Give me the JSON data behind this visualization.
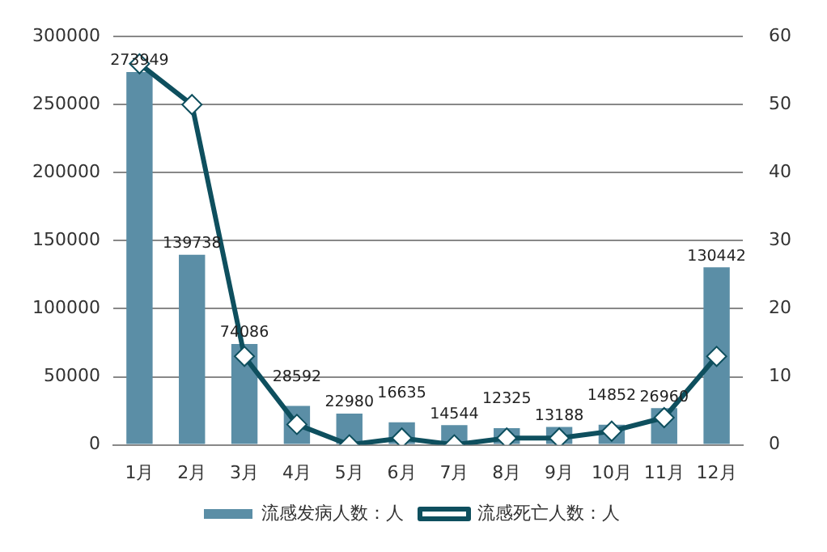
{
  "chart_data": {
    "type": "bar",
    "categories": [
      "1月",
      "2月",
      "3月",
      "4月",
      "5月",
      "6月",
      "7月",
      "8月",
      "9月",
      "10月",
      "11月",
      "12月"
    ],
    "series": [
      {
        "name": "流感发病人数：人",
        "color": "#5b8ea6",
        "values": [
          273949,
          139738,
          74086,
          28592,
          22980,
          16635,
          14544,
          12325,
          13188,
          14852,
          26960,
          130442
        ],
        "value_labels": [
          "273949",
          "139738",
          "74086",
          "28592",
          "22980",
          "16635",
          "14544",
          "12325",
          "13188",
          "14852",
          "26960",
          "130442"
        ]
      },
      {
        "name": "流感死亡人数：人",
        "type": "line",
        "axis": "y2",
        "color": "#0e4f5e",
        "values": [
          56,
          50,
          13,
          3,
          0,
          1,
          0,
          1,
          1,
          2,
          4,
          13
        ]
      }
    ],
    "ylim": [
      0,
      300000
    ],
    "yticks": [
      0,
      50000,
      100000,
      150000,
      200000,
      250000,
      300000
    ],
    "y2lim": [
      0,
      60
    ],
    "y2ticks": [
      0,
      10,
      20,
      30,
      40,
      50,
      60
    ],
    "grid": "y",
    "legend": "bottom",
    "marker": "diamond",
    "line_style": "solid"
  }
}
